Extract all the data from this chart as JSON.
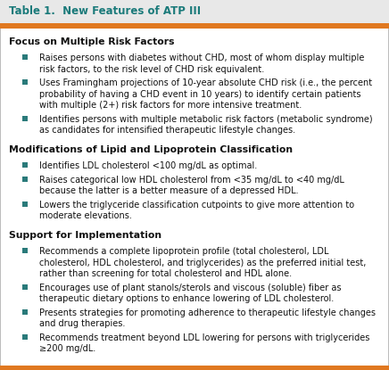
{
  "title": "Table 1.  New Features of ATP III",
  "title_color": "#1a7a7a",
  "title_bg": "#e8e8e8",
  "header_bar_color": "#e07820",
  "border_color": "#b0b0b0",
  "bg_color": "#ffffff",
  "bullet_color": "#2a7a7a",
  "section_headers": [
    "Focus on Multiple Risk Factors",
    "Modifications of Lipid and Lipoprotein Classification",
    "Support for Implementation"
  ],
  "sections": [
    [
      "Raises persons with diabetes without CHD, most of whom display multiple\nrisk factors, to the risk level of CHD risk equivalent.",
      "Uses Framingham projections of 10-year absolute CHD risk (i.e., the percent\nprobability of having a CHD event in 10 years) to identify certain patients\nwith multiple (2+) risk factors for more intensive treatment.",
      "Identifies persons with multiple metabolic risk factors (metabolic syndrome)\nas candidates for intensified therapeutic lifestyle changes."
    ],
    [
      "Identifies LDL cholesterol <100 mg/dL as optimal.",
      "Raises categorical low HDL cholesterol from <35 mg/dL to <40 mg/dL\nbecause the latter is a better measure of a depressed HDL.",
      "Lowers the triglyceride classification cutpoints to give more attention to\nmoderate elevations."
    ],
    [
      "Recommends a complete lipoprotein profile (total cholesterol, LDL\ncholesterol, HDL cholesterol, and triglycerides) as the preferred initial test,\nrather than screening for total cholesterol and HDL alone.",
      "Encourages use of plant stanols/sterols and viscous (soluble) fiber as\ntherapeutic dietary options to enhance lowering of LDL cholesterol.",
      "Presents strategies for promoting adherence to therapeutic lifestyle changes\nand drug therapies.",
      "Recommends treatment beyond LDL lowering for persons with triglycerides\n≥200 mg/dL."
    ]
  ],
  "figsize": [
    4.36,
    4.15
  ],
  "dpi": 100,
  "title_fontsize": 8.5,
  "header_fontsize": 7.8,
  "body_fontsize": 7.0
}
